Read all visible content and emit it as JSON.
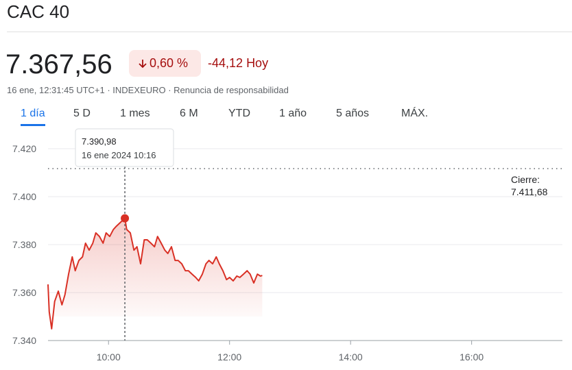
{
  "header": {
    "title": "CAC 40"
  },
  "quote": {
    "price": "7.367,56",
    "change_percent": "0,60 %",
    "change_abs": "-44,12",
    "period": "Hoy",
    "meta": "16 ene, 12:31:45 UTC+1 · INDEXEURO · Renuncia de responsabilidad"
  },
  "tabs": [
    "1 día",
    "5 D",
    "1 mes",
    "6 M",
    "YTD",
    "1 año",
    "5 años",
    "MÁX."
  ],
  "chart_data": {
    "type": "line",
    "x": [
      9.0,
      9.02,
      9.06,
      9.11,
      9.17,
      9.23,
      9.28,
      9.34,
      9.4,
      9.45,
      9.51,
      9.57,
      9.62,
      9.68,
      9.74,
      9.79,
      9.85,
      9.91,
      9.96,
      10.02,
      10.08,
      10.13,
      10.19,
      10.27,
      10.3,
      10.36,
      10.42,
      10.47,
      10.53,
      10.59,
      10.64,
      10.7,
      10.76,
      10.81,
      10.87,
      10.93,
      10.98,
      11.04,
      11.1,
      11.15,
      11.21,
      11.27,
      11.32,
      11.38,
      11.44,
      11.49,
      11.55,
      11.61,
      11.66,
      11.72,
      11.78,
      11.83,
      11.89,
      11.95,
      12.0,
      12.06,
      12.12,
      12.17,
      12.23,
      12.29,
      12.34,
      12.4,
      12.46,
      12.51,
      12.54
    ],
    "series": [
      {
        "name": "CAC 40",
        "color": "#d93025",
        "values": [
          7363.4,
          7352.0,
          7344.9,
          7356.3,
          7360.6,
          7354.9,
          7359.1,
          7367.7,
          7374.9,
          7369.1,
          7373.4,
          7374.9,
          7380.6,
          7377.7,
          7380.6,
          7384.9,
          7383.4,
          7380.6,
          7384.9,
          7383.4,
          7386.3,
          7387.7,
          7389.1,
          7390.98,
          7386.3,
          7384.9,
          7377.7,
          7379.1,
          7372.0,
          7382.0,
          7382.0,
          7380.6,
          7379.1,
          7383.4,
          7380.6,
          7377.7,
          7376.3,
          7379.1,
          7373.4,
          7373.4,
          7372.0,
          7369.1,
          7369.1,
          7367.7,
          7366.3,
          7364.9,
          7367.7,
          7372.0,
          7373.4,
          7372.0,
          7374.9,
          7372.0,
          7369.1,
          7365.4,
          7366.3,
          7364.9,
          7366.9,
          7366.3,
          7367.7,
          7369.1,
          7367.7,
          7364.0,
          7367.7,
          7366.9,
          7367.1
        ]
      }
    ],
    "xlim": [
      9,
      17.5
    ],
    "xticks": [
      {
        "value": 10,
        "label": "10:00"
      },
      {
        "value": 12,
        "label": "12:00"
      },
      {
        "value": 14,
        "label": "14:00"
      },
      {
        "value": 16,
        "label": "16:00"
      }
    ],
    "ylim": [
      7340,
      7420
    ],
    "yticks": [
      {
        "value": 7340,
        "label": "7.340"
      },
      {
        "value": 7360,
        "label": "7.360"
      },
      {
        "value": 7380,
        "label": "7.380"
      },
      {
        "value": 7400,
        "label": "7.400"
      },
      {
        "value": 7420,
        "label": "7.420"
      }
    ],
    "grid": true,
    "previous_close": {
      "title": "Cierre:",
      "value": 7411.68,
      "label": "7.411,68"
    },
    "tooltip": {
      "index": 23,
      "label": "7.390,98",
      "date": "16 ene 2024 10:16"
    }
  }
}
